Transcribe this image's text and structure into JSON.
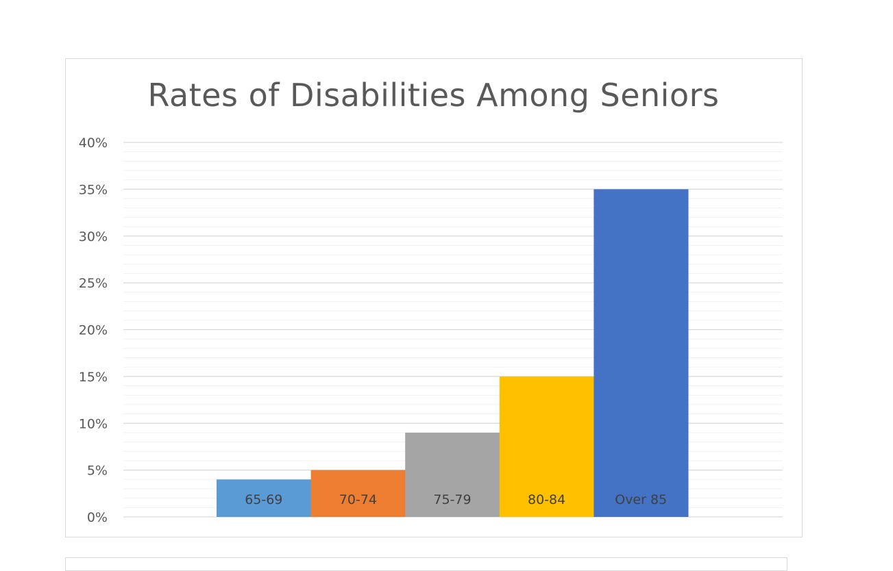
{
  "chart_data": {
    "type": "bar",
    "title": "Rates of Disabilities Among Seniors",
    "xlabel": "",
    "ylabel": "",
    "categories": [
      "65-69",
      "70-74",
      "75-79",
      "80-84",
      "Over 85"
    ],
    "values": [
      0.04,
      0.05,
      0.09,
      0.15,
      0.35
    ],
    "colors": [
      "#5b9bd5",
      "#ed7d31",
      "#a5a5a5",
      "#ffc000",
      "#4472c4"
    ],
    "ylim": [
      0,
      0.4
    ],
    "yticks": [
      "0%",
      "5%",
      "10%",
      "15%",
      "20%",
      "25%",
      "30%",
      "35%",
      "40%"
    ],
    "y_tick_values": [
      0,
      0.05,
      0.1,
      0.15,
      0.2,
      0.25,
      0.3,
      0.35,
      0.4
    ],
    "category_labels_inside_bars": true,
    "grid": true,
    "legend": "none"
  }
}
